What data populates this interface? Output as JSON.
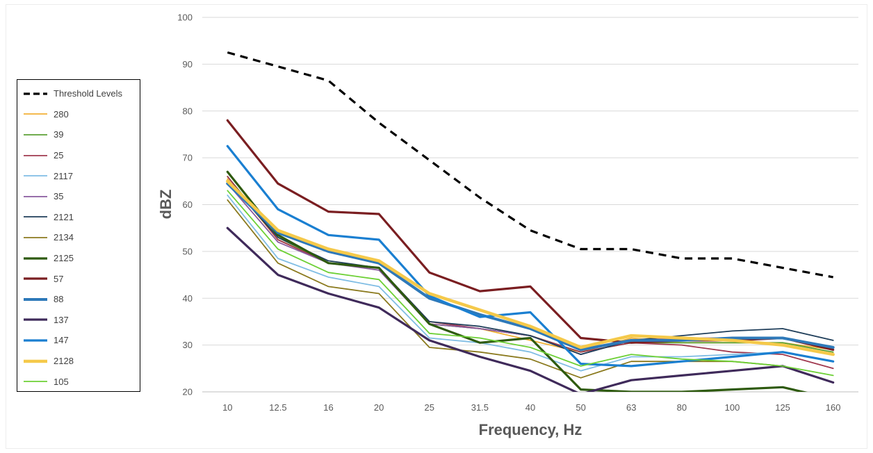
{
  "chart_data": {
    "type": "line",
    "title": "",
    "xlabel": "Frequency, Hz",
    "ylabel": "dBZ",
    "ylim": [
      20,
      100
    ],
    "yticks": [
      20,
      30,
      40,
      50,
      60,
      70,
      80,
      90,
      100
    ],
    "grid": true,
    "legend_position": "left",
    "x": [
      "10",
      "12.5",
      "16",
      "20",
      "25",
      "31.5",
      "40",
      "50",
      "63",
      "80",
      "100",
      "125",
      "160"
    ],
    "series": [
      {
        "name": "Threshold Levels",
        "color": "#000000",
        "dashed": true,
        "values": [
          92.5,
          89.5,
          86.5,
          77.5,
          69.5,
          61.5,
          54.5,
          50.5,
          50.5,
          48.5,
          48.5,
          46.5,
          44.5
        ]
      },
      {
        "name": "280",
        "color": "#F2B134",
        "values": [
          65.5,
          52.5,
          47.5,
          46.5,
          34.5,
          33.5,
          31.0,
          28.5,
          31.5,
          30.5,
          30.5,
          30.5,
          29.0
        ]
      },
      {
        "name": "39",
        "color": "#5BA135",
        "values": [
          66.0,
          53.0,
          47.5,
          46.5,
          34.5,
          33.5,
          32.0,
          28.5,
          30.5,
          30.5,
          30.5,
          30.5,
          28.5
        ]
      },
      {
        "name": "25",
        "color": "#A0394F",
        "values": [
          66.0,
          52.5,
          47.5,
          46.5,
          35.0,
          33.5,
          32.0,
          28.5,
          30.5,
          30.0,
          28.5,
          28.0,
          25.0
        ]
      },
      {
        "name": "2117",
        "color": "#7FBDE4",
        "values": [
          62.0,
          48.5,
          44.5,
          42.5,
          31.5,
          30.5,
          28.5,
          24.5,
          27.5,
          27.5,
          28.0,
          28.5,
          26.5
        ]
      },
      {
        "name": "35",
        "color": "#8A5A9E",
        "values": [
          64.5,
          52.0,
          47.5,
          46.0,
          34.5,
          33.5,
          32.0,
          28.0,
          31.0,
          31.5,
          31.5,
          31.5,
          29.5
        ]
      },
      {
        "name": "2121",
        "color": "#1F3E5A",
        "values": [
          65.0,
          53.0,
          48.0,
          46.5,
          35.0,
          34.0,
          32.0,
          28.0,
          31.0,
          32.0,
          33.0,
          33.5,
          31.0
        ]
      },
      {
        "name": "2134",
        "color": "#8B7A1E",
        "values": [
          61.0,
          47.5,
          42.5,
          41.0,
          29.5,
          28.5,
          27.0,
          23.0,
          26.5,
          26.5,
          26.5,
          25.5,
          22.0
        ]
      },
      {
        "name": "2125",
        "color": "#2E5A0F",
        "values": [
          67.0,
          53.5,
          47.5,
          46.5,
          34.5,
          30.5,
          31.5,
          20.5,
          20.0,
          20.0,
          20.5,
          21.0,
          18.5
        ]
      },
      {
        "name": "57",
        "color": "#7A1E21",
        "values": [
          78.0,
          64.5,
          58.5,
          58.0,
          45.5,
          41.5,
          42.5,
          31.5,
          30.5,
          31.0,
          31.0,
          31.5,
          29.0
        ]
      },
      {
        "name": "88",
        "color": "#2E79B9",
        "values": [
          64.5,
          54.0,
          50.0,
          47.5,
          40.0,
          36.5,
          33.5,
          29.0,
          31.0,
          31.0,
          31.5,
          31.5,
          29.5
        ]
      },
      {
        "name": "137",
        "color": "#3F2A5A",
        "values": [
          55.0,
          45.0,
          41.0,
          38.0,
          31.0,
          27.5,
          24.5,
          19.5,
          22.5,
          23.5,
          24.5,
          25.5,
          22.0
        ]
      },
      {
        "name": "147",
        "color": "#1A7FD1",
        "values": [
          72.5,
          59.0,
          53.5,
          52.5,
          40.5,
          36.0,
          37.0,
          26.0,
          25.5,
          26.5,
          27.5,
          28.5,
          26.5
        ]
      },
      {
        "name": "2128",
        "color": "#F5C94A",
        "values": [
          65.0,
          54.5,
          50.5,
          48.0,
          41.0,
          37.5,
          34.0,
          29.5,
          32.0,
          31.5,
          31.0,
          30.0,
          28.0
        ]
      },
      {
        "name": "105",
        "color": "#6DD035",
        "values": [
          63.0,
          50.5,
          45.5,
          44.0,
          32.5,
          31.5,
          29.5,
          25.5,
          28.0,
          27.0,
          26.5,
          25.5,
          23.5
        ]
      }
    ]
  }
}
